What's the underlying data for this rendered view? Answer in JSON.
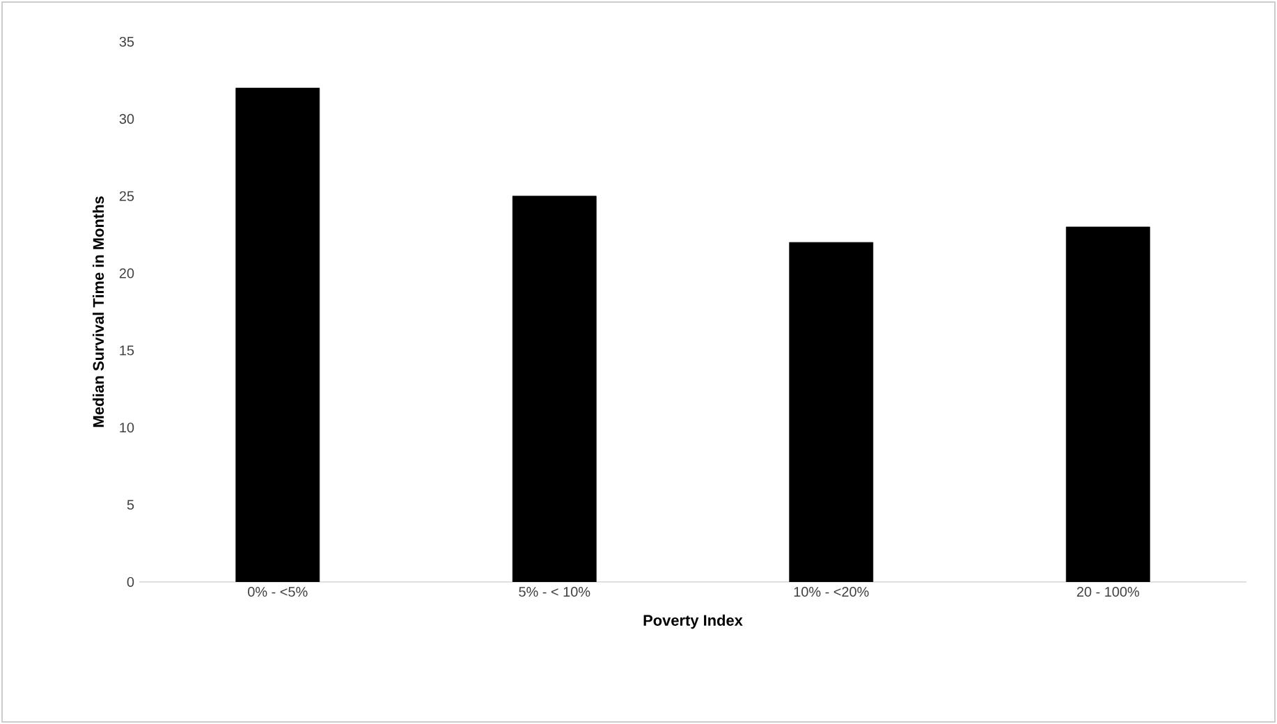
{
  "chart_data": {
    "type": "bar",
    "xlabel": "Poverty Index",
    "ylabel": "Median Survival Time in Months",
    "categories": [
      "0% - <5%",
      "5% - < 10%",
      "10% - <20%",
      "20 - 100%"
    ],
    "values": [
      32,
      25,
      22,
      23
    ],
    "color": "#000000",
    "ylim": [
      0,
      35
    ],
    "yticks": [
      0,
      5,
      10,
      15,
      20,
      25,
      30,
      35
    ],
    "grid": false
  }
}
